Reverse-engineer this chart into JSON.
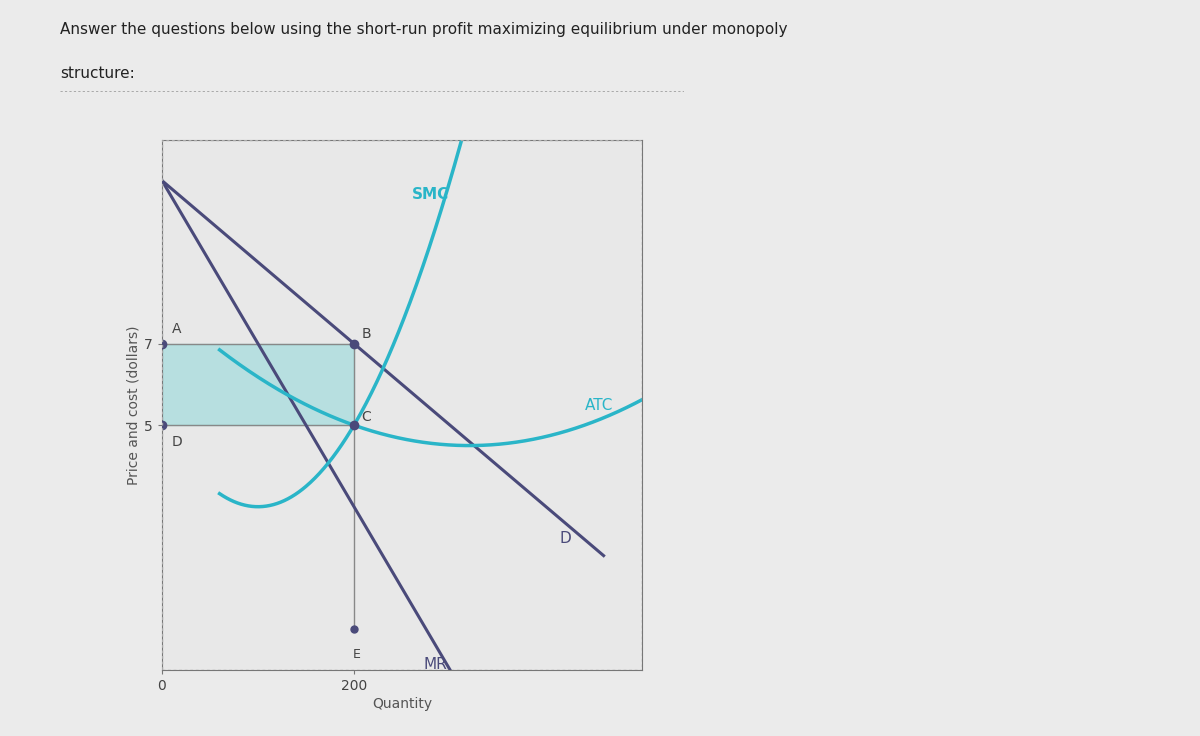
{
  "title_line1": "Answer the questions below using the short-run profit maximizing equilibrium under monopoly",
  "title_line2": "structure:",
  "xlabel": "Quantity",
  "ylabel": "Price and cost (dollars)",
  "x_equilibrium": 200,
  "y_price": 7,
  "y_atc": 5,
  "xlim": [
    0,
    500
  ],
  "ylim": [
    -1,
    12
  ],
  "smc_color": "#2ab5c8",
  "atc_color": "#2ab5c8",
  "demand_color": "#4a4a7a",
  "mr_color": "#4a4a7a",
  "shade_color": "#7dd6d8",
  "shade_alpha": 0.45,
  "bg_color": "#ebebeb",
  "plot_bg": "#e8e8e8",
  "dot_color": "#4a4a7a",
  "curve_label_color_smc": "#3d3d6b",
  "curve_label_color_atc": "#3d3d6b",
  "curve_label_color_d": "#3d3d6b",
  "curve_label_color_mr": "#3d3d6b",
  "dotted_border_color": "#999999",
  "axis_color": "#555555",
  "tick_label_color": "#444444",
  "point_label_color": "#444444"
}
